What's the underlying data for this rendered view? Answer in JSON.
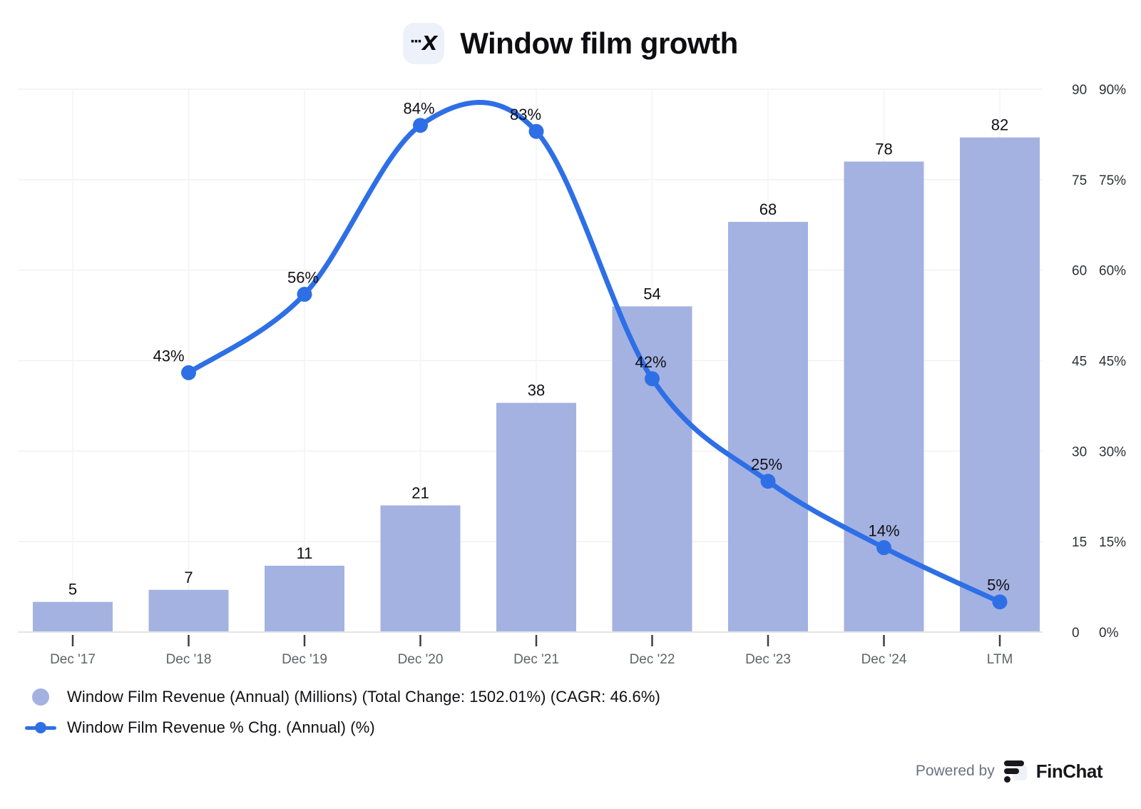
{
  "header": {
    "title": "Window film growth",
    "logo_dots": "···",
    "logo_x": "x"
  },
  "chart_data": {
    "type": "bar+line",
    "title": "Window film growth",
    "categories": [
      "Dec '17",
      "Dec '18",
      "Dec '19",
      "Dec '20",
      "Dec '21",
      "Dec '22",
      "Dec '23",
      "Dec '24",
      "LTM"
    ],
    "series": [
      {
        "name": "Window Film Revenue (Annual) (Millions)",
        "type": "bar",
        "values": [
          5,
          7,
          11,
          21,
          38,
          54,
          68,
          78,
          82
        ],
        "color": "#a4b2e2"
      },
      {
        "name": "Window Film Revenue % Chg. (Annual) (%)",
        "type": "line",
        "values": [
          null,
          43,
          56,
          84,
          83,
          42,
          25,
          14,
          5
        ],
        "label_suffix": "%",
        "color": "#2e6fe6"
      }
    ],
    "y_axis": {
      "position": "right",
      "range": [
        0,
        90
      ],
      "ticks": [
        0,
        15,
        30,
        45,
        60,
        75,
        90
      ],
      "tick_labels_left": [
        "0",
        "15",
        "30",
        "45",
        "60",
        "75",
        "90"
      ],
      "tick_labels_right": [
        "0%",
        "15%",
        "30%",
        "45%",
        "60%",
        "75%",
        "90%"
      ]
    },
    "grid": true,
    "legend_position": "bottom-left"
  },
  "legend": {
    "items": [
      {
        "label": "Window Film Revenue (Annual) (Millions) (Total Change: 1502.01%) (CAGR: 46.6%)",
        "marker": "circle",
        "color": "#a4b2e2"
      },
      {
        "label": "Window Film Revenue % Chg. (Annual) (%)",
        "marker": "line-dot",
        "color": "#2e6fe6"
      }
    ]
  },
  "footer": {
    "powered_by": "Powered by",
    "brand": "FinChat"
  },
  "colors": {
    "bar": "#a4b2e2",
    "line": "#2e6fe6",
    "grid": "#f1f1f1",
    "grid_vertical": "#f5f3f3",
    "axis_line": "#e4e4e4",
    "tick": "#3c4043",
    "x_label": "#5f6368",
    "y_label": "#2f3136",
    "value_label": "#101014"
  }
}
